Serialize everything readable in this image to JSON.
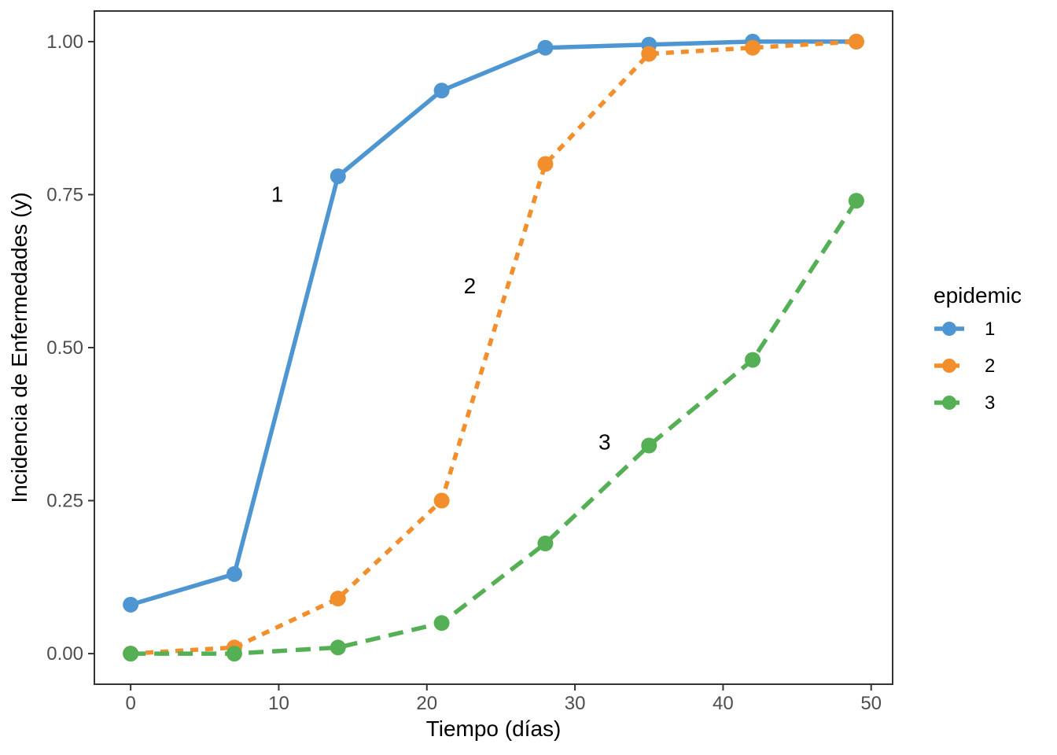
{
  "figure": {
    "kind": "statistical-plot",
    "description": "Disease incidence progress curves for three epidemics"
  },
  "chart_data": {
    "type": "line",
    "title": "",
    "xlabel": "Tiempo (días)",
    "ylabel": "Incidencia de Enfermedades (y)",
    "x": [
      0,
      7,
      14,
      21,
      28,
      35,
      42,
      49
    ],
    "series": [
      {
        "name": "1",
        "color": "#4E96D2",
        "line_style": "solid",
        "marker": "circle",
        "values": [
          0.08,
          0.13,
          0.78,
          0.92,
          0.99,
          0.995,
          1.0,
          1.0
        ]
      },
      {
        "name": "2",
        "color": "#F28E2C",
        "line_style": "dashed",
        "marker": "circle",
        "values": [
          0.0,
          0.01,
          0.09,
          0.25,
          0.8,
          0.98,
          0.99,
          1.0
        ]
      },
      {
        "name": "3",
        "color": "#55B055",
        "line_style": "longdash",
        "marker": "circle",
        "values": [
          0.0,
          0.0,
          0.01,
          0.05,
          0.18,
          0.34,
          0.48,
          0.74
        ]
      }
    ],
    "xlim": [
      -2.45,
      51.45
    ],
    "ylim": [
      -0.05,
      1.05
    ],
    "xticks": {
      "values": [
        0,
        10,
        20,
        30,
        40,
        50
      ],
      "labels": [
        "0",
        "10",
        "20",
        "30",
        "40",
        "50"
      ]
    },
    "yticks": {
      "values": [
        0,
        0.25,
        0.5,
        0.75,
        1.0
      ],
      "labels": [
        "0.00",
        "0.25",
        "0.50",
        "0.75",
        "1.00"
      ]
    },
    "grid": "off",
    "legend": {
      "title": "epidemic",
      "position": "right",
      "entries": [
        {
          "label": "1",
          "series": 0
        },
        {
          "label": "2",
          "series": 1
        },
        {
          "label": "3",
          "series": 2
        }
      ]
    },
    "annotations": [
      {
        "label": "1",
        "x": 9.9,
        "y": 0.75
      },
      {
        "label": "2",
        "x": 22.9,
        "y": 0.6
      },
      {
        "label": "3",
        "x": 32.0,
        "y": 0.345
      }
    ],
    "colors": {
      "axis_tick_text": "#4D4D4D",
      "axis_title_text": "#000000",
      "annotation_text": "#000000",
      "legend_text": "#000000",
      "panel_border": "#333333",
      "background": "#FFFFFF"
    }
  }
}
